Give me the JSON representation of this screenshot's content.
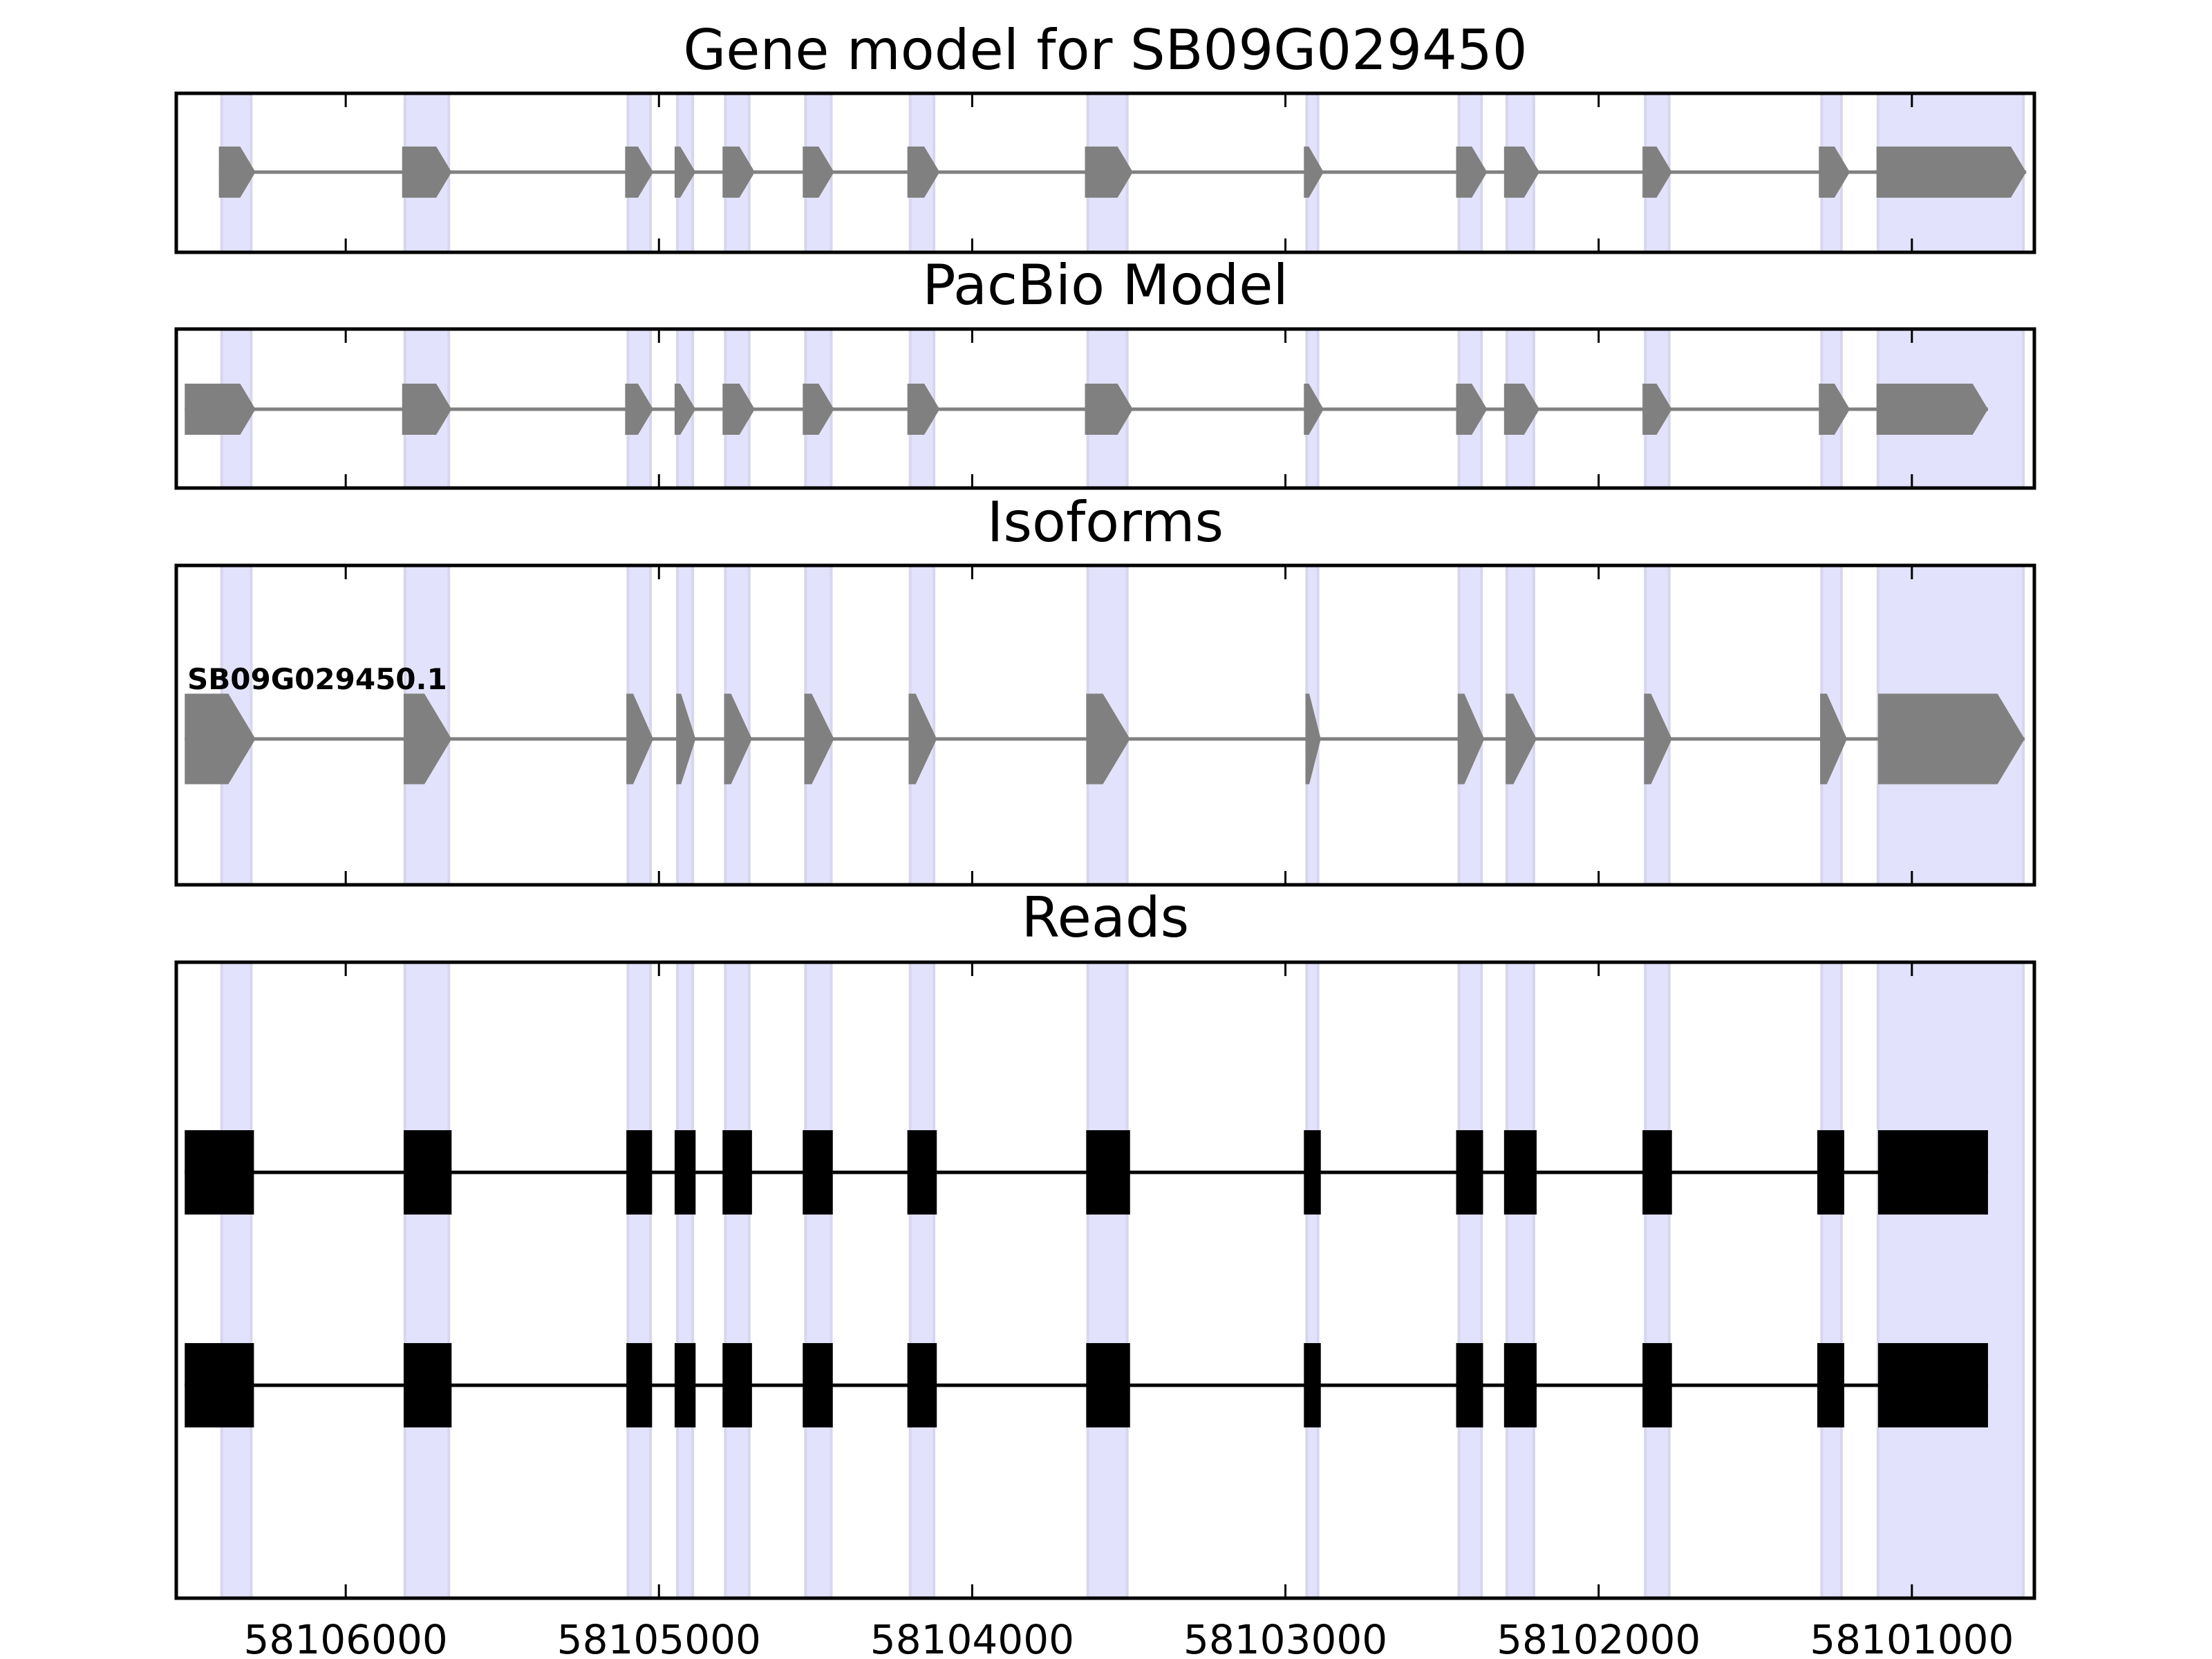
{
  "chart_data": {
    "type": "gene-track",
    "xlim": [
      58106541,
      58100609
    ],
    "x_reversed": true,
    "xticks": [
      58106000,
      58105000,
      58104000,
      58103000,
      58102000,
      58101000
    ],
    "xtick_labels": [
      "58106000",
      "58105000",
      "58104000",
      "58103000",
      "58102000",
      "58101000"
    ],
    "highlight_color": "#e2e2fc",
    "exon_color": "#808080",
    "read_color": "#000000",
    "highlights": [
      [
        58106396,
        58106302
      ],
      [
        58105811,
        58105671
      ],
      [
        58105099,
        58105027
      ],
      [
        58104941,
        58104892
      ],
      [
        58104788,
        58104712
      ],
      [
        58104532,
        58104450
      ],
      [
        58104198,
        58104122
      ],
      [
        58103631,
        58103505
      ],
      [
        58102932,
        58102896
      ],
      [
        58102446,
        58102374
      ],
      [
        58102293,
        58102207
      ],
      [
        58101851,
        58101775
      ],
      [
        58101288,
        58101225
      ],
      [
        58101108,
        58100644
      ]
    ],
    "panels": [
      {
        "title": "Gene model for SB09G029450",
        "kind": "arrow",
        "tracks": [
          {
            "label": "",
            "exons": [
              [
                58106405,
                58106288
              ],
              [
                58105820,
                58105662
              ],
              [
                58105108,
                58105018
              ],
              [
                58104950,
                58104883
              ],
              [
                58104797,
                58104694
              ],
              [
                58104541,
                58104441
              ],
              [
                58104207,
                58104104
              ],
              [
                58103640,
                58103487
              ],
              [
                58102941,
                58102878
              ],
              [
                58102455,
                58102356
              ],
              [
                58102302,
                58102189
              ],
              [
                58101860,
                58101766
              ],
              [
                58101297,
                58101198
              ],
              [
                58101113,
                58100635
              ]
            ]
          }
        ]
      },
      {
        "title": "PacBio Model",
        "kind": "arrow",
        "tracks": [
          {
            "label": "",
            "exons": [
              [
                58106514,
                58106288
              ],
              [
                58105820,
                58105662
              ],
              [
                58105108,
                58105018
              ],
              [
                58104950,
                58104883
              ],
              [
                58104797,
                58104694
              ],
              [
                58104541,
                58104441
              ],
              [
                58104207,
                58104104
              ],
              [
                58103640,
                58103487
              ],
              [
                58102941,
                58102878
              ],
              [
                58102455,
                58102356
              ],
              [
                58102302,
                58102189
              ],
              [
                58101860,
                58101766
              ],
              [
                58101297,
                58101198
              ],
              [
                58101113,
                58100757
              ]
            ]
          }
        ]
      },
      {
        "title": "Isoforms",
        "kind": "arrow",
        "tracks": [
          {
            "label": "SB09G029450.1",
            "exons": [
              [
                58106514,
                58106288
              ],
              [
                58105815,
                58105662
              ],
              [
                58105104,
                58105018
              ],
              [
                58104945,
                58104883
              ],
              [
                58104792,
                58104703
              ],
              [
                58104536,
                58104441
              ],
              [
                58104203,
                58104113
              ],
              [
                58103636,
                58103496
              ],
              [
                58102936,
                58102887
              ],
              [
                58102450,
                58102365
              ],
              [
                58102297,
                58102198
              ],
              [
                58101855,
                58101766
              ],
              [
                58101293,
                58101207
              ],
              [
                58101108,
                58100640
              ]
            ]
          }
        ]
      },
      {
        "title": "Reads",
        "kind": "block",
        "tracks": [
          {
            "label": "",
            "exons": [
              [
                58106514,
                58106293
              ],
              [
                58105815,
                58105662
              ],
              [
                58105104,
                58105022
              ],
              [
                58104950,
                58104883
              ],
              [
                58104797,
                58104703
              ],
              [
                58104541,
                58104445
              ],
              [
                58104207,
                58104113
              ],
              [
                58103636,
                58103496
              ],
              [
                58102941,
                58102887
              ],
              [
                58102455,
                58102369
              ],
              [
                58102302,
                58102198
              ],
              [
                58101860,
                58101766
              ],
              [
                58101302,
                58101216
              ],
              [
                58101108,
                58100757
              ]
            ]
          },
          {
            "label": "",
            "exons": [
              [
                58106514,
                58106293
              ],
              [
                58105815,
                58105662
              ],
              [
                58105104,
                58105022
              ],
              [
                58104950,
                58104883
              ],
              [
                58104797,
                58104703
              ],
              [
                58104541,
                58104445
              ],
              [
                58104207,
                58104113
              ],
              [
                58103636,
                58103496
              ],
              [
                58102941,
                58102887
              ],
              [
                58102455,
                58102369
              ],
              [
                58102302,
                58102198
              ],
              [
                58101860,
                58101766
              ],
              [
                58101302,
                58101216
              ],
              [
                58101108,
                58100757
              ]
            ]
          }
        ]
      }
    ]
  }
}
